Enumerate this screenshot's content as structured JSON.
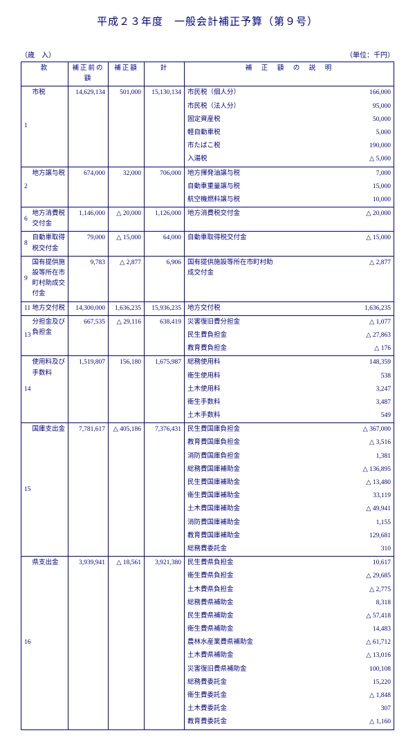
{
  "title": "平成２３年度　一般会計補正予算（第９号）",
  "section_label": "（歳　入）",
  "unit_label": "（単位：千円）",
  "columns": {
    "kan": "款",
    "pre": "補正前の額",
    "amt": "補正額",
    "total": "計",
    "desc": "補　正　額　の　説　明"
  },
  "rows": [
    {
      "no": "1",
      "name": "市税",
      "pre": "14,629,134",
      "amt": "501,000",
      "total": "15,130,134",
      "details": [
        {
          "d": "市民税（個人分）",
          "v": "166,000"
        },
        {
          "d": "市民税（法人分）",
          "v": "95,000"
        },
        {
          "d": "固定資産税",
          "v": "50,000"
        },
        {
          "d": "軽自動車税",
          "v": "5,000"
        },
        {
          "d": "市たばこ税",
          "v": "190,000"
        },
        {
          "d": "入湯税",
          "v": "△ 5,000"
        }
      ]
    },
    {
      "no": "2",
      "name": "地方譲与税",
      "pre": "674,000",
      "amt": "32,000",
      "total": "706,000",
      "details": [
        {
          "d": "地方揮発油譲与税",
          "v": "7,000"
        },
        {
          "d": "自動車重量譲与税",
          "v": "15,000"
        },
        {
          "d": "航空機燃料譲与税",
          "v": "10,000"
        }
      ]
    },
    {
      "no": "6",
      "name": "地方消費税交付金",
      "pre": "1,146,000",
      "amt": "△ 20,000",
      "total": "1,126,000",
      "details": [
        {
          "d": "地方消費税交付金",
          "v": "△ 20,000"
        }
      ]
    },
    {
      "no": "8",
      "name": "自動車取得税交付金",
      "pre": "79,000",
      "amt": "△ 15,000",
      "total": "64,000",
      "details": [
        {
          "d": "自動車取得税交付金",
          "v": "△ 15,000"
        }
      ]
    },
    {
      "no": "9",
      "name": "国有提供施設等所在市町村助成交付金",
      "pre": "9,783",
      "amt": "△ 2,877",
      "total": "6,906",
      "details": [
        {
          "d": "国有提供施設等所在市町村助成交付金",
          "v": "△ 2,877"
        }
      ]
    },
    {
      "no": "11",
      "name": "地方交付税",
      "pre": "14,300,000",
      "amt": "1,636,235",
      "total": "15,936,235",
      "details": [
        {
          "d": "地方交付税",
          "v": "1,636,235"
        }
      ]
    },
    {
      "no": "13",
      "name": "分担金及び負担金",
      "pre": "667,535",
      "amt": "△ 29,116",
      "total": "638,419",
      "details": [
        {
          "d": "災害復旧費分担金",
          "v": "△ 1,077"
        },
        {
          "d": "民生費負担金",
          "v": "△ 27,863"
        },
        {
          "d": "教育費負担金",
          "v": "△ 176"
        }
      ]
    },
    {
      "no": "14",
      "name": "使用料及び手数料",
      "pre": "1,519,807",
      "amt": "156,180",
      "total": "1,675,987",
      "details": [
        {
          "d": "総務使用料",
          "v": "148,359"
        },
        {
          "d": "衛生使用料",
          "v": "538"
        },
        {
          "d": "土木使用料",
          "v": "3,247"
        },
        {
          "d": "衛生手数料",
          "v": "3,487"
        },
        {
          "d": "土木手数料",
          "v": "549"
        }
      ]
    },
    {
      "no": "15",
      "name": "国庫支出金",
      "pre": "7,781,617",
      "amt": "△ 405,186",
      "total": "7,376,431",
      "details": [
        {
          "d": "民生費国庫負担金",
          "v": "△ 367,000"
        },
        {
          "d": "教育費国庫負担金",
          "v": "△ 3,516"
        },
        {
          "d": "消防費国庫負担金",
          "v": "1,381"
        },
        {
          "d": "総務費国庫補助金",
          "v": "△ 136,895"
        },
        {
          "d": "民生費国庫補助金",
          "v": "△ 13,480"
        },
        {
          "d": "衛生費国庫補助金",
          "v": "33,119"
        },
        {
          "d": "土木費国庫補助金",
          "v": "△ 49,941"
        },
        {
          "d": "消防費国庫補助金",
          "v": "1,155"
        },
        {
          "d": "教育費国庫補助金",
          "v": "129,681"
        },
        {
          "d": "総務費委託金",
          "v": "310"
        }
      ]
    },
    {
      "no": "16",
      "name": "県支出金",
      "pre": "3,939,941",
      "amt": "△ 18,561",
      "total": "3,921,380",
      "details": [
        {
          "d": "民生費県負担金",
          "v": "10,617"
        },
        {
          "d": "衛生費県負担金",
          "v": "△ 29,685"
        },
        {
          "d": "土木費県負担金",
          "v": "△ 2,775"
        },
        {
          "d": "総務費県補助金",
          "v": "8,318"
        },
        {
          "d": "民生費県補助金",
          "v": "△ 57,418"
        },
        {
          "d": "衛生費県補助金",
          "v": "14,483"
        },
        {
          "d": "農林水産業費県補助金",
          "v": "△ 61,712"
        },
        {
          "d": "土木費県補助金",
          "v": "△ 13,016"
        },
        {
          "d": "災害復旧費県補助金",
          "v": "100,108"
        },
        {
          "d": "総務費委託金",
          "v": "15,220"
        },
        {
          "d": "衛生費委託金",
          "v": "△ 1,848"
        },
        {
          "d": "土木費委託金",
          "v": "307"
        },
        {
          "d": "教育費委託金",
          "v": "△ 1,160"
        }
      ]
    }
  ]
}
